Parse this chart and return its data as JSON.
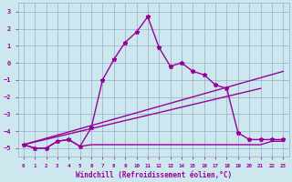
{
  "background_color": "#cce8ee",
  "grid_color": "#99aacc",
  "line_color": "#990099",
  "xlabel": "Windchill (Refroidissement éolien,°C)",
  "xlim": [
    -0.5,
    23.5
  ],
  "ylim": [
    -5.5,
    3.5
  ],
  "yticks": [
    -5,
    -4,
    -3,
    -2,
    -1,
    0,
    1,
    2,
    3
  ],
  "xticks": [
    0,
    1,
    2,
    3,
    4,
    5,
    6,
    7,
    8,
    9,
    10,
    11,
    12,
    13,
    14,
    15,
    16,
    17,
    18,
    19,
    20,
    21,
    22,
    23
  ],
  "series": [
    {
      "comment": "flat line around -5 (lower bound / horizontal reference)",
      "x": [
        0,
        1,
        2,
        3,
        4,
        5,
        6,
        7,
        8,
        9,
        10,
        11,
        12,
        13,
        14,
        15,
        16,
        17,
        18,
        19,
        20,
        21,
        22,
        23
      ],
      "y": [
        -4.8,
        -5.0,
        -5.0,
        -4.6,
        -4.5,
        -4.9,
        -4.8,
        -4.8,
        -4.8,
        -4.8,
        -4.8,
        -4.8,
        -4.8,
        -4.8,
        -4.8,
        -4.8,
        -4.8,
        -4.8,
        -4.8,
        -4.8,
        -4.8,
        -4.8,
        -4.6,
        -4.6
      ],
      "marker": null,
      "lw": 1.0,
      "zorder": 2
    },
    {
      "comment": "diagonal line from lower-left to upper-right",
      "x": [
        0,
        23
      ],
      "y": [
        -4.8,
        -0.5
      ],
      "marker": null,
      "lw": 1.0,
      "zorder": 2
    },
    {
      "comment": "second diagonal line (slightly different slope)",
      "x": [
        0,
        21
      ],
      "y": [
        -4.8,
        -1.5
      ],
      "marker": null,
      "lw": 1.0,
      "zorder": 2
    },
    {
      "comment": "main zigzag line with star markers",
      "x": [
        0,
        1,
        2,
        3,
        4,
        5,
        6,
        7,
        8,
        9,
        10,
        11,
        12,
        13,
        14,
        15,
        16,
        17,
        18,
        19,
        20,
        21,
        22,
        23
      ],
      "y": [
        -4.8,
        -5.0,
        -5.0,
        -4.6,
        -4.5,
        -4.9,
        -3.8,
        -1.0,
        0.2,
        1.2,
        1.8,
        2.7,
        0.9,
        -0.2,
        0.0,
        -0.5,
        -0.7,
        -1.3,
        -1.5,
        -4.1,
        -4.5,
        -4.5,
        -4.5,
        -4.5
      ],
      "marker": "*",
      "lw": 1.0,
      "zorder": 3
    }
  ]
}
